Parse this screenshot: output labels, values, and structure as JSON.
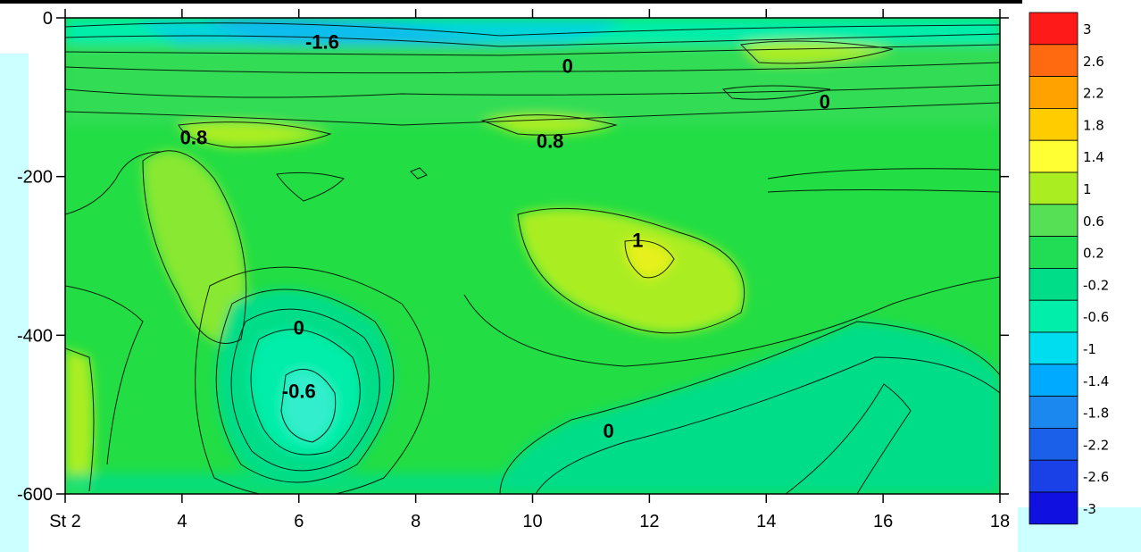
{
  "chart_data": {
    "type": "heatmap",
    "title": "",
    "xlabel": "",
    "ylabel": "",
    "x_ticks": [
      {
        "value": 2,
        "label": "St 2"
      },
      {
        "value": 4,
        "label": "4"
      },
      {
        "value": 6,
        "label": "6"
      },
      {
        "value": 8,
        "label": "8"
      },
      {
        "value": 10,
        "label": "10"
      },
      {
        "value": 12,
        "label": "12"
      },
      {
        "value": 14,
        "label": "14"
      },
      {
        "value": 16,
        "label": "16"
      },
      {
        "value": 18,
        "label": "18"
      }
    ],
    "y_ticks": [
      {
        "value": 0,
        "label": "0"
      },
      {
        "value": -200,
        "label": "-200"
      },
      {
        "value": -400,
        "label": "-400"
      },
      {
        "value": -600,
        "label": "-600"
      }
    ],
    "xlim": [
      2,
      18
    ],
    "ylim": [
      -600,
      0
    ],
    "colorbar": {
      "levels": [
        "3",
        "2.6",
        "2.2",
        "1.8",
        "1.4",
        "1",
        "0.6",
        "0.2",
        "-0.2",
        "-0.6",
        "-1",
        "-1.4",
        "-1.8",
        "-2.2",
        "-2.6",
        "-3"
      ],
      "colors": [
        "#ff1a1a",
        "#ff6a10",
        "#ffa200",
        "#ffcc00",
        "#ffff33",
        "#aaee22",
        "#55e055",
        "#20dd55",
        "#00dd88",
        "#00eeaa",
        "#00ddee",
        "#00aaff",
        "#1a88ee",
        "#1a60e8",
        "#1a40e8",
        "#1010e0"
      ]
    },
    "contour_labels": [
      {
        "x": 6.4,
        "y": -30,
        "text": "-1.6"
      },
      {
        "x": 10.6,
        "y": -60,
        "text": "0"
      },
      {
        "x": 15.0,
        "y": -105,
        "text": "0"
      },
      {
        "x": 4.2,
        "y": -150,
        "text": "0.8"
      },
      {
        "x": 10.3,
        "y": -155,
        "text": "0.8"
      },
      {
        "x": 11.8,
        "y": -280,
        "text": "1"
      },
      {
        "x": 6.0,
        "y": -390,
        "text": "0"
      },
      {
        "x": 6.0,
        "y": -470,
        "text": "-0.6"
      },
      {
        "x": 11.3,
        "y": -520,
        "text": "0"
      }
    ],
    "grid": false
  }
}
